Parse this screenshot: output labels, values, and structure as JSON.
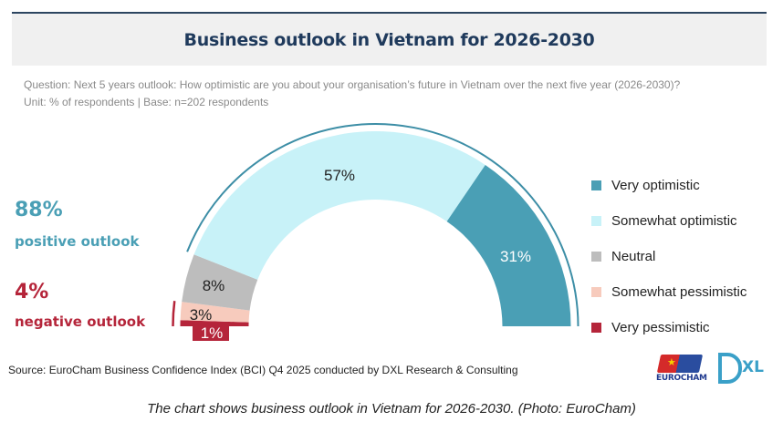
{
  "header": {
    "title": "Business outlook in Vietnam for 2026-2030"
  },
  "question": {
    "line1": "Question: Next 5 years outlook: How optimistic are you about your organisation’s future in Vietnam over the next five year (2026-2030)?",
    "line2": "Unit: % of respondents | Base: n=202 respondents"
  },
  "summary": {
    "positive": {
      "value": "88%",
      "label": "positive outlook",
      "color": "#4a9fb5"
    },
    "negative": {
      "value": "4%",
      "label": "negative outlook",
      "color": "#b5253a"
    }
  },
  "chart_data": {
    "type": "pie",
    "variant": "half-donut",
    "title": "Business outlook in Vietnam for 2026-2030",
    "unit": "% of respondents",
    "base": "n=202 respondents",
    "legend_position": "right",
    "categories": [
      "Very pessimistic",
      "Somewhat pessimistic",
      "Neutral",
      "Somewhat optimistic",
      "Very optimistic"
    ],
    "values": [
      1,
      3,
      8,
      57,
      31
    ],
    "labels": [
      "1%",
      "3%",
      "8%",
      "57%",
      "31%"
    ],
    "colors": [
      "#b5253a",
      "#f7cbbd",
      "#bdbdbd",
      "#c8f2f8",
      "#4a9fb5"
    ],
    "label_colors": [
      "#ffffff",
      "#222222",
      "#222222",
      "#222222",
      "#ffffff"
    ],
    "brackets": [
      {
        "name": "positive",
        "categories": [
          "Somewhat optimistic",
          "Very optimistic"
        ],
        "total": 88,
        "color": "#3d8ea6"
      },
      {
        "name": "negative",
        "categories": [
          "Very pessimistic",
          "Somewhat pessimistic"
        ],
        "total": 4,
        "color": "#b5253a"
      }
    ]
  },
  "legend": {
    "items": [
      {
        "label": "Very optimistic",
        "color": "#4a9fb5"
      },
      {
        "label": "Somewhat optimistic",
        "color": "#c8f2f8"
      },
      {
        "label": "Neutral",
        "color": "#bdbdbd"
      },
      {
        "label": "Somewhat pessimistic",
        "color": "#f7cbbd"
      },
      {
        "label": "Very pessimistic",
        "color": "#b5253a"
      }
    ]
  },
  "footer": {
    "source": "Source: EuroCham Business Confidence Index (BCI) Q4 2025 conducted by DXL Research & Consulting",
    "logo_eurocham": "EUROCHAM",
    "logo_dxl": "XL"
  },
  "caption": "The chart shows business outlook in Vietnam for 2026-2030. (Photo: EuroCham)"
}
